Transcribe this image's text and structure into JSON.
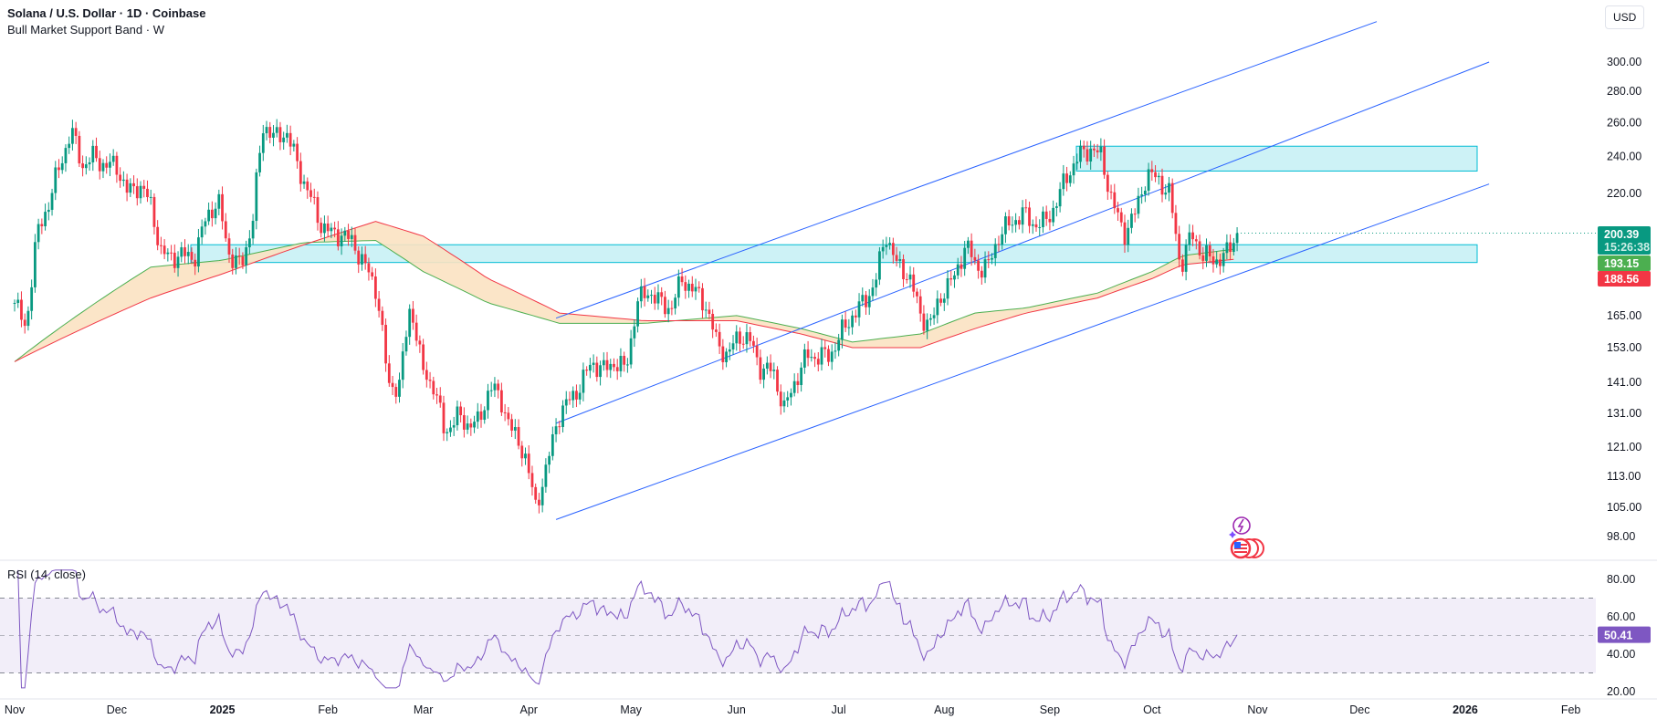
{
  "header": {
    "symbol_title": "Solana / U.S. Dollar · 1D · Coinbase",
    "indicator_title": "Bull Market Support Band · W",
    "currency_button": "USD"
  },
  "rsi": {
    "title": "RSI (14, close)",
    "last_label": "50.41",
    "ticks": [
      {
        "v": 80,
        "label": "80.00"
      },
      {
        "v": 60,
        "label": "60.00"
      },
      {
        "v": 40,
        "label": "40.00"
      },
      {
        "v": 20,
        "label": "20.00"
      }
    ],
    "band": [
      30,
      70
    ],
    "mid": 50,
    "color": "#7e57c2"
  },
  "colors": {
    "up": "#089981",
    "down": "#f23645",
    "sma": "#4caf50",
    "ema": "#f23645",
    "band_fill": "#fbe2c2",
    "channel": "#2962ff",
    "zone_fill": "#cdf2f6",
    "zone_stroke": "#00bcd4"
  },
  "price_labels": {
    "last_price": "200.39",
    "countdown": "15:26:38",
    "sma_value": "193.15",
    "ema_value": "188.56"
  },
  "chart_data": {
    "type": "candlestick",
    "title": "Solana / U.S. Dollar · 1D · Coinbase",
    "scale": "log",
    "ylim": [
      93,
      330
    ],
    "x_unit": "days since 2024-11-01",
    "price_ticks": [
      {
        "v": 300,
        "label": "300.00"
      },
      {
        "v": 280,
        "label": "280.00"
      },
      {
        "v": 260,
        "label": "260.00"
      },
      {
        "v": 240,
        "label": "240.00"
      },
      {
        "v": 220,
        "label": "220.00"
      },
      {
        "v": 165,
        "label": "165.00"
      },
      {
        "v": 153,
        "label": "153.00"
      },
      {
        "v": 141,
        "label": "141.00"
      },
      {
        "v": 131,
        "label": "131.00"
      },
      {
        "v": 121,
        "label": "121.00"
      },
      {
        "v": 113,
        "label": "113.00"
      },
      {
        "v": 105,
        "label": "105.00"
      },
      {
        "v": 98,
        "label": "98.00"
      }
    ],
    "time_ticks": [
      {
        "label": "Nov",
        "day": 0
      },
      {
        "label": "Dec",
        "day": 30
      },
      {
        "label": "2025",
        "day": 61,
        "bold": true
      },
      {
        "label": "Feb",
        "day": 92
      },
      {
        "label": "Mar",
        "day": 120
      },
      {
        "label": "Apr",
        "day": 151
      },
      {
        "label": "May",
        "day": 181
      },
      {
        "label": "Jun",
        "day": 212
      },
      {
        "label": "Jul",
        "day": 242
      },
      {
        "label": "Aug",
        "day": 273
      },
      {
        "label": "Sep",
        "day": 304
      },
      {
        "label": "Oct",
        "day": 334
      },
      {
        "label": "Nov",
        "day": 365
      },
      {
        "label": "Dec",
        "day": 395
      },
      {
        "label": "2026",
        "day": 426,
        "bold": true
      },
      {
        "label": "Feb",
        "day": 457
      }
    ],
    "last_day": 359,
    "closes_sampled": [
      170,
      160,
      200,
      215,
      235,
      255,
      235,
      240,
      235,
      235,
      220,
      225,
      215,
      190,
      190,
      190,
      190,
      210,
      215,
      190,
      185,
      205,
      260,
      250,
      255,
      235,
      220,
      205,
      200,
      200,
      195,
      185,
      175,
      140,
      140,
      170,
      145,
      140,
      125,
      130,
      128,
      128,
      140,
      135,
      125,
      120,
      105,
      115,
      130,
      135,
      140,
      148,
      145,
      148,
      145,
      170,
      175,
      170,
      168,
      180,
      175,
      170,
      155,
      150,
      158,
      155,
      145,
      145,
      132,
      142,
      150,
      150,
      150,
      158,
      165,
      170,
      178,
      200,
      185,
      182,
      165,
      162,
      175,
      180,
      195,
      185,
      185,
      200,
      205,
      210,
      205,
      205,
      215,
      230,
      240,
      245,
      240,
      215,
      200,
      210,
      230,
      228,
      220,
      185,
      200,
      190,
      188,
      190,
      200.39
    ],
    "sma_20w": [
      [
        0,
        148
      ],
      [
        40,
        185
      ],
      [
        61,
        188
      ],
      [
        85,
        196
      ],
      [
        106,
        197
      ],
      [
        120,
        183
      ],
      [
        139,
        170
      ],
      [
        160,
        162
      ],
      [
        185,
        162
      ],
      [
        212,
        165
      ],
      [
        231,
        160
      ],
      [
        246,
        155
      ],
      [
        266,
        158
      ],
      [
        282,
        166
      ],
      [
        297,
        168
      ],
      [
        318,
        174
      ],
      [
        334,
        183
      ],
      [
        343,
        190
      ],
      [
        359,
        193.15
      ]
    ],
    "ema_21w": [
      [
        0,
        148
      ],
      [
        40,
        172
      ],
      [
        61,
        182
      ],
      [
        85,
        195
      ],
      [
        106,
        206
      ],
      [
        120,
        199
      ],
      [
        139,
        180
      ],
      [
        160,
        166
      ],
      [
        185,
        163
      ],
      [
        212,
        163
      ],
      [
        231,
        158
      ],
      [
        246,
        153
      ],
      [
        266,
        153
      ],
      [
        282,
        160
      ],
      [
        297,
        166
      ],
      [
        318,
        172
      ],
      [
        334,
        180
      ],
      [
        343,
        186
      ],
      [
        359,
        188.56
      ]
    ],
    "support_zones": [
      [
        187,
        195
      ],
      [
        232,
        246
      ]
    ],
    "channel": {
      "lower": [
        [
          159,
          102
        ],
        [
          433,
          225
        ]
      ],
      "middle": [
        [
          159,
          128
        ],
        [
          433,
          300
        ]
      ],
      "upper": [
        [
          159,
          164
        ],
        [
          400,
          330
        ]
      ]
    }
  }
}
